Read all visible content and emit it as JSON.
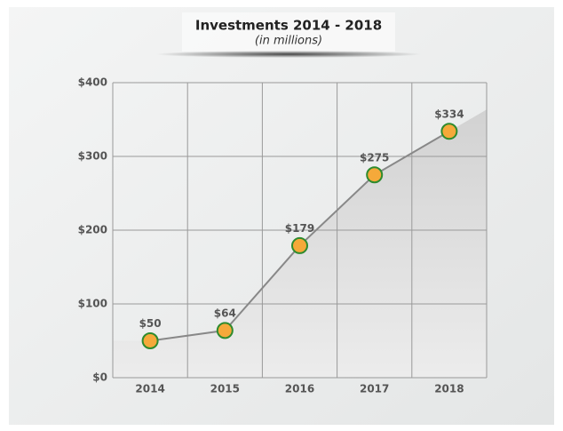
{
  "chart_data": {
    "type": "line",
    "title": "Investments  2014 - 2018",
    "subtitle": "(in millions)",
    "categories": [
      "2014",
      "2015",
      "2016",
      "2017",
      "2018"
    ],
    "values": [
      50,
      64,
      179,
      275,
      334
    ],
    "value_labels": [
      "$50",
      "$64",
      "$179",
      "$275",
      "$334"
    ],
    "color": "#888888",
    "marker_color": "#f5a93a",
    "marker_edge_color": "#2e8b2e",
    "ylim": [
      0,
      400
    ],
    "yticks": [
      {
        "value": 0,
        "label": "$0"
      },
      {
        "value": 100,
        "label": "$100"
      },
      {
        "value": 200,
        "label": "$200"
      },
      {
        "value": 300,
        "label": "$300"
      },
      {
        "value": 400,
        "label": "$400"
      }
    ],
    "grid": true
  }
}
